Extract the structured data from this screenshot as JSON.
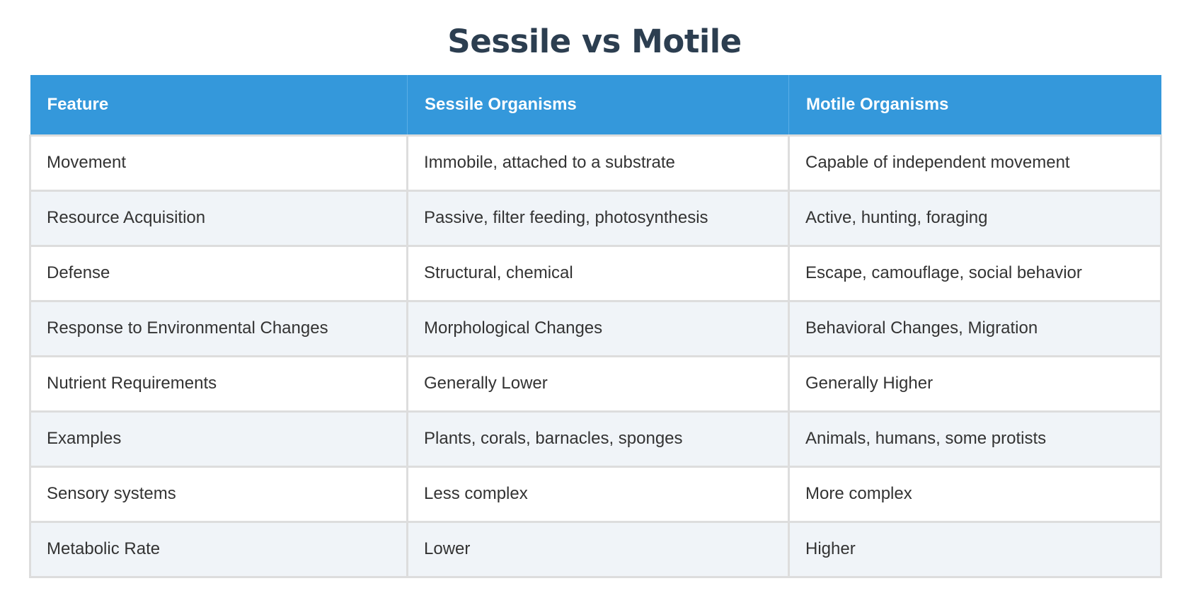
{
  "title": "Sessile vs Motile",
  "colors": {
    "header_bg": "#3498db",
    "header_text": "#ffffff",
    "title_text": "#2c3e50",
    "body_text": "#333333",
    "row_alt_bg": "#f0f4f8",
    "border": "#dddddd"
  },
  "table": {
    "headers": [
      "Feature",
      "Sessile Organisms",
      "Motile Organisms"
    ],
    "rows": [
      [
        "Movement",
        "Immobile, attached to a substrate",
        "Capable of independent movement"
      ],
      [
        "Resource Acquisition",
        "Passive, filter feeding, photosynthesis",
        "Active, hunting, foraging"
      ],
      [
        "Defense",
        "Structural, chemical",
        "Escape, camouflage, social behavior"
      ],
      [
        "Response to Environmental Changes",
        "Morphological Changes",
        "Behavioral Changes, Migration"
      ],
      [
        "Nutrient Requirements",
        "Generally Lower",
        "Generally Higher"
      ],
      [
        "Examples",
        "Plants, corals, barnacles, sponges",
        "Animals, humans, some protists"
      ],
      [
        "Sensory systems",
        "Less complex",
        "More complex"
      ],
      [
        "Metabolic Rate",
        "Lower",
        "Higher"
      ]
    ]
  }
}
